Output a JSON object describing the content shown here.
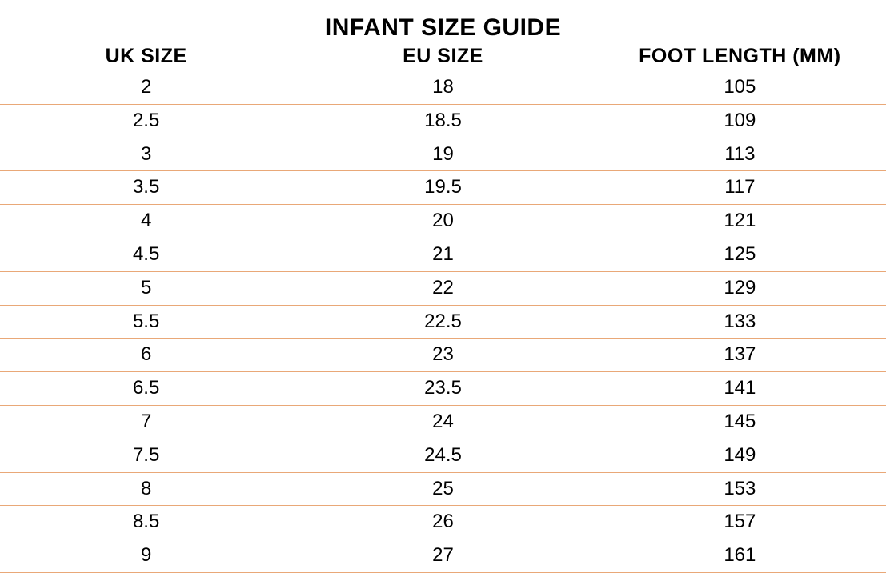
{
  "table": {
    "title": "INFANT SIZE GUIDE",
    "columns": [
      "UK SIZE",
      "EU SIZE",
      "FOOT LENGTH (MM)"
    ],
    "rows": [
      [
        "2",
        "18",
        "105"
      ],
      [
        "2.5",
        "18.5",
        "109"
      ],
      [
        "3",
        "19",
        "113"
      ],
      [
        "3.5",
        "19.5",
        "117"
      ],
      [
        "4",
        "20",
        "121"
      ],
      [
        "4.5",
        "21",
        "125"
      ],
      [
        "5",
        "22",
        "129"
      ],
      [
        "5.5",
        "22.5",
        "133"
      ],
      [
        "6",
        "23",
        "137"
      ],
      [
        "6.5",
        "23.5",
        "141"
      ],
      [
        "7",
        "24",
        "145"
      ],
      [
        "7.5",
        "24.5",
        "149"
      ],
      [
        "8",
        "25",
        "153"
      ],
      [
        "8.5",
        "26",
        "157"
      ],
      [
        "9",
        "27",
        "161"
      ]
    ],
    "styling": {
      "title_fontsize": 30,
      "header_fontsize": 25,
      "cell_fontsize": 24,
      "title_fontweight": 700,
      "header_fontweight": 700,
      "cell_fontweight": 400,
      "font_family": "Century Gothic",
      "text_color": "#000000",
      "row_border_color": "#e9a878",
      "row_border_width": 1,
      "background_color": "#ffffff",
      "column_widths_pct": [
        33,
        34,
        33
      ],
      "text_align": "center"
    }
  }
}
